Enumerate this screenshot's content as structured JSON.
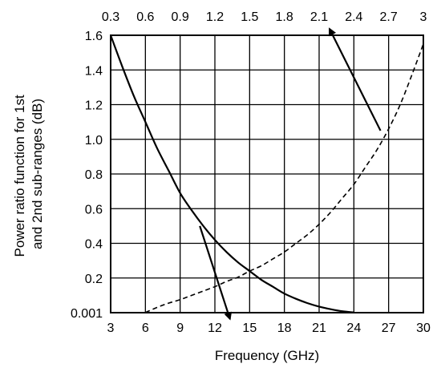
{
  "chart_data": {
    "type": "line",
    "xlabel": "Frequency (GHz)",
    "ylabel_line1": "Power ratio function for 1st",
    "ylabel_line2": "and 2nd sub-ranges (dB)",
    "bottom_axis": {
      "range": [
        3,
        30
      ],
      "ticks": [
        3,
        6,
        9,
        12,
        15,
        18,
        21,
        24,
        27,
        30
      ],
      "tick_labels": [
        "3",
        "6",
        "9",
        "12",
        "15",
        "18",
        "21",
        "24",
        "27",
        "30"
      ]
    },
    "top_axis": {
      "range": [
        0.3,
        3
      ],
      "ticks": [
        0.3,
        0.6,
        0.9,
        1.2,
        1.5,
        1.8,
        2.1,
        2.4,
        2.7,
        3
      ],
      "tick_labels": [
        "0.3",
        "0.6",
        "0.9",
        "1.2",
        "1.5",
        "1.8",
        "2.1",
        "2.4",
        "2.7",
        "3"
      ]
    },
    "y_axis": {
      "ticks": [
        0.001,
        0.2,
        0.4,
        0.6,
        0.8,
        1.0,
        1.2,
        1.4,
        1.6
      ],
      "tick_labels": [
        "0.001",
        "0.2",
        "0.4",
        "0.6",
        "0.8",
        "1.0",
        "1.2",
        "1.4",
        "1.6"
      ]
    },
    "grid": true,
    "series": [
      {
        "style": "solid",
        "x_axis": "bottom",
        "x": [
          3,
          4,
          5,
          6,
          7,
          8,
          9,
          10,
          11,
          12,
          13,
          14,
          15,
          16,
          17,
          18,
          19,
          20,
          21,
          22,
          23,
          24
        ],
        "y": [
          1.6,
          1.42,
          1.25,
          1.1,
          0.95,
          0.82,
          0.69,
          0.59,
          0.5,
          0.42,
          0.35,
          0.29,
          0.24,
          0.19,
          0.15,
          0.11,
          0.08,
          0.055,
          0.035,
          0.02,
          0.008,
          0.001
        ]
      },
      {
        "style": "dashed",
        "x_axis": "bottom",
        "x": [
          6,
          7,
          8,
          9,
          10,
          11,
          12,
          13,
          14,
          15,
          16,
          17,
          18,
          19,
          20,
          21,
          22,
          23,
          24,
          25,
          26,
          27,
          28,
          29,
          30
        ],
        "y": [
          0.001,
          0.03,
          0.055,
          0.075,
          0.1,
          0.125,
          0.15,
          0.18,
          0.205,
          0.24,
          0.27,
          0.31,
          0.35,
          0.4,
          0.45,
          0.51,
          0.58,
          0.66,
          0.74,
          0.84,
          0.94,
          1.06,
          1.2,
          1.37,
          1.55
        ]
      }
    ],
    "arrows": [
      {
        "from": [
          10.7,
          0.5
        ],
        "to": [
          13.3,
          0.001
        ],
        "points_to": "bottom axis"
      },
      {
        "from": [
          26.3,
          1.05
        ],
        "to": [
          21.9,
          1.6
        ],
        "points_to": "top axis"
      }
    ]
  }
}
